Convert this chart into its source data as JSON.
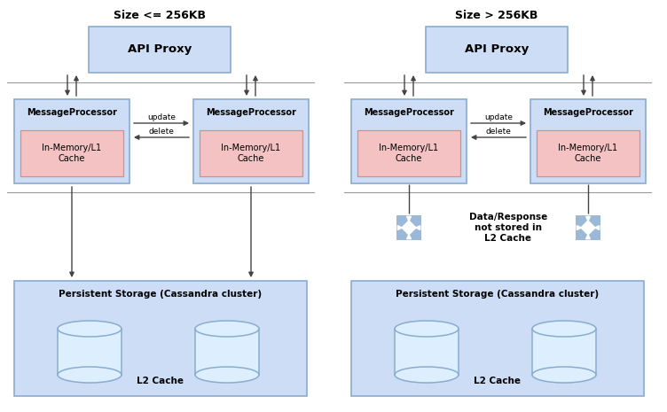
{
  "bg_color": "#ffffff",
  "box_blue_face": "#ccddf5",
  "box_blue_edge": "#8aaccf",
  "box_pink_face": "#f4c2c2",
  "box_pink_edge": "#d09090",
  "arrow_color": "#444444",
  "text_color": "#000000",
  "divider_color": "#999999",
  "cross_color": "#8aaccf",
  "diagram1_title": "Size <= 256KB",
  "diagram2_title": "Size > 256KB",
  "label_api": "API Proxy",
  "label_mp": "MessageProcessor",
  "label_cache": "In-Memory/L1\nCache",
  "label_update": "update",
  "label_delete": "delete",
  "label_storage": "Persistent Storage (Cassandra cluster)",
  "label_l2": "L2 Cache",
  "label_no_cache": "Data/Response\nnot stored in\nL2 Cache"
}
